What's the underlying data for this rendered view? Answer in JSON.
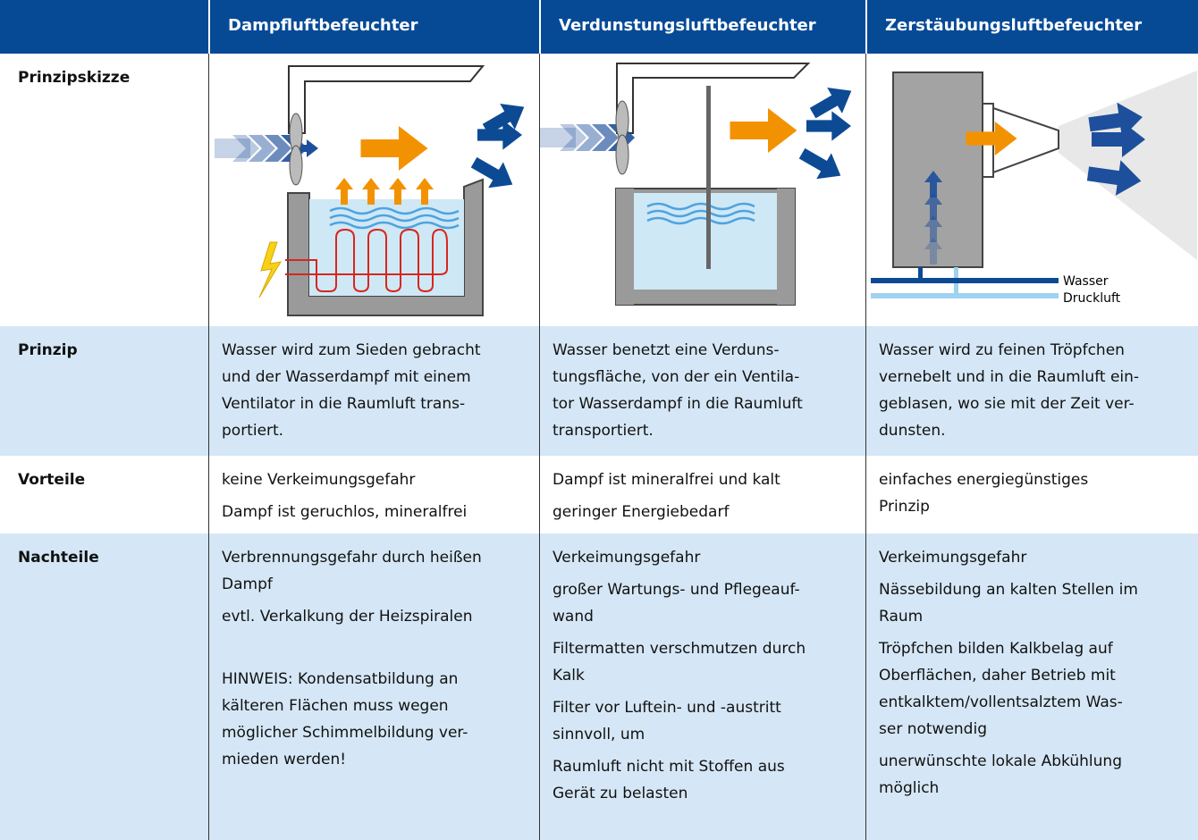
{
  "header": {
    "columns": [
      "Dampfluftbefeuchter",
      "Verdunstungsluftbefeuchter",
      "Zerstäubungsluftbefeuchter"
    ]
  },
  "rows": [
    {
      "label": "Prinzipskizze"
    },
    {
      "label": "Prinzip",
      "cells": [
        [
          [
            "Wasser wird zum Sieden gebracht",
            "und der Wasserdampf mit einem",
            "Ventilator in die Raumluft trans-",
            "portiert."
          ]
        ],
        [
          [
            "Wasser benetzt eine Verduns-",
            "tungsfläche, von der ein Ventila-",
            "tor Wasserdampf in die Raumluft",
            "transportiert."
          ]
        ],
        [
          [
            "Wasser wird zu feinen Tröpfchen",
            "vernebelt und in die Raumluft ein-",
            "geblasen, wo sie mit der Zeit ver-",
            "dunsten."
          ]
        ]
      ]
    },
    {
      "label": "Vorteile",
      "cells": [
        [
          [
            "keine Verkeimungsgefahr"
          ],
          [
            "Dampf ist geruchlos, mineralfrei"
          ]
        ],
        [
          [
            "Dampf ist mineralfrei und kalt"
          ],
          [
            "geringer Energiebedarf"
          ]
        ],
        [
          [
            "einfaches energiegünstiges",
            "Prinzip"
          ]
        ]
      ]
    },
    {
      "label": "Nachteile",
      "cells": [
        [
          [
            "Verbrennungsgefahr durch heißen",
            "Dampf"
          ],
          [
            "evtl. Verkalkung der Heizspiralen"
          ],
          [
            "HINWEIS: Kondensatbildung an",
            "kälteren Flächen muss wegen",
            "möglicher Schimmelbildung ver-",
            "mieden werden!"
          ]
        ],
        [
          [
            "Verkeimungsgefahr"
          ],
          [
            "großer Wartungs- und Pflegeauf-",
            "wand"
          ],
          [
            "Filtermatten verschmutzen durch",
            "Kalk"
          ],
          [
            "Filter vor Luftein- und -austritt",
            "sinnvoll, um"
          ],
          [
            "Raumluft nicht mit Stoffen aus",
            "Gerät zu belasten"
          ]
        ],
        [
          [
            "Verkeimungsgefahr"
          ],
          [
            "Nässebildung an kalten Stellen im",
            "Raum"
          ],
          [
            "Tröpfchen bilden Kalkbelag auf",
            "Oberflächen, daher Betrieb mit",
            "entkalktem/vollentsalztem Was-",
            "ser notwendig"
          ],
          [
            "unerwünschte lokale Abkühlung",
            "möglich"
          ]
        ]
      ]
    }
  ],
  "sketch_labels": [
    "Wasser",
    "Druckluft"
  ]
}
